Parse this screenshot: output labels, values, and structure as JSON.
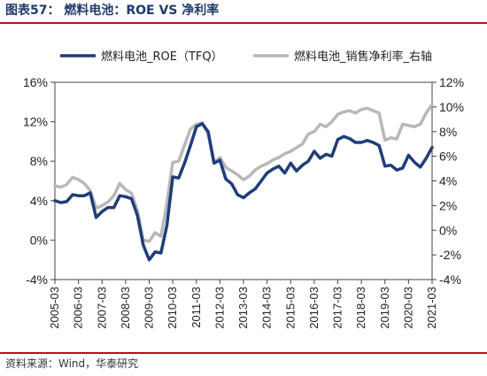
{
  "title": "图表57：  燃料电池：ROE VS  净利率",
  "source": "资料来源：Wind，华泰研究",
  "colors": {
    "roe": "#1f3d7a",
    "margin": "#b8b8b8",
    "accent": "#b5121b",
    "title": "#1f3a6b"
  },
  "chart_data": {
    "type": "line",
    "xlabel": "",
    "ylabel": "",
    "ylim": [
      -4,
      16
    ],
    "y2lim": [
      -4,
      12
    ],
    "grid": false,
    "legend_position": "top",
    "yticks": [
      "16%",
      "12%",
      "8%",
      "4%",
      "0%",
      "-4%"
    ],
    "y2ticks": [
      "12%",
      "10%",
      "8%",
      "6%",
      "4%",
      "2%",
      "0%",
      "-2%",
      "-4%"
    ],
    "xticks": [
      "2005-03",
      "2006-03",
      "2007-03",
      "2008-03",
      "2009-03",
      "2010-03",
      "2011-03",
      "2012-03",
      "2013-03",
      "2014-03",
      "2015-03",
      "2016-03",
      "2017-03",
      "2018-03",
      "2019-03",
      "2020-03",
      "2021-03"
    ],
    "x": [
      "2005-03",
      "2005-06",
      "2005-09",
      "2005-12",
      "2006-03",
      "2006-06",
      "2006-09",
      "2006-12",
      "2007-03",
      "2007-06",
      "2007-09",
      "2007-12",
      "2008-03",
      "2008-06",
      "2008-09",
      "2008-12",
      "2009-03",
      "2009-06",
      "2009-09",
      "2009-12",
      "2010-03",
      "2010-06",
      "2010-09",
      "2010-12",
      "2011-03",
      "2011-06",
      "2011-09",
      "2011-12",
      "2012-03",
      "2012-06",
      "2012-09",
      "2012-12",
      "2013-03",
      "2013-06",
      "2013-09",
      "2013-12",
      "2014-03",
      "2014-06",
      "2014-09",
      "2014-12",
      "2015-03",
      "2015-06",
      "2015-09",
      "2015-12",
      "2016-03",
      "2016-06",
      "2016-09",
      "2016-12",
      "2017-03",
      "2017-06",
      "2017-09",
      "2017-12",
      "2018-03",
      "2018-06",
      "2018-09",
      "2018-12",
      "2019-03",
      "2019-06",
      "2019-09",
      "2019-12",
      "2020-03",
      "2020-06",
      "2020-09",
      "2020-12",
      "2021-03"
    ],
    "series": [
      {
        "name": "燃料电池_ROE（TFQ）",
        "axis": "left",
        "values": [
          4.0,
          3.8,
          3.9,
          4.6,
          4.5,
          4.5,
          4.8,
          2.3,
          2.9,
          3.3,
          3.3,
          4.5,
          4.4,
          4.2,
          2.5,
          -0.5,
          -2.0,
          -1.2,
          -1.3,
          1.5,
          6.4,
          6.3,
          7.8,
          9.6,
          11.5,
          11.8,
          11.0,
          7.8,
          8.1,
          6.2,
          5.7,
          4.6,
          4.3,
          4.8,
          5.2,
          6.0,
          6.8,
          7.2,
          7.5,
          6.8,
          7.8,
          7.0,
          7.6,
          8.0,
          9.0,
          8.3,
          8.7,
          8.5,
          10.2,
          10.5,
          10.3,
          9.9,
          9.9,
          10.1,
          9.9,
          9.6,
          7.5,
          7.6,
          7.1,
          7.3,
          8.6,
          7.9,
          7.4,
          8.3,
          9.4
        ]
      },
      {
        "name": "燃料电池_销售净利率_右轴",
        "axis": "right",
        "values": [
          3.6,
          3.5,
          3.7,
          4.3,
          4.1,
          3.8,
          3.2,
          1.8,
          2.0,
          2.3,
          2.8,
          3.8,
          3.3,
          3.0,
          1.6,
          -0.8,
          -0.9,
          -0.2,
          -0.5,
          2.2,
          5.5,
          5.6,
          6.9,
          8.2,
          8.6,
          8.7,
          7.8,
          5.5,
          5.9,
          5.1,
          4.8,
          4.5,
          4.1,
          4.4,
          4.9,
          5.2,
          5.4,
          5.7,
          5.9,
          6.2,
          6.4,
          6.7,
          7.0,
          7.8,
          8.0,
          8.6,
          8.4,
          8.8,
          9.4,
          9.6,
          9.7,
          9.5,
          9.8,
          9.9,
          9.7,
          9.5,
          7.3,
          7.5,
          7.4,
          8.6,
          8.5,
          8.4,
          8.6,
          9.5,
          10.2
        ]
      }
    ]
  }
}
